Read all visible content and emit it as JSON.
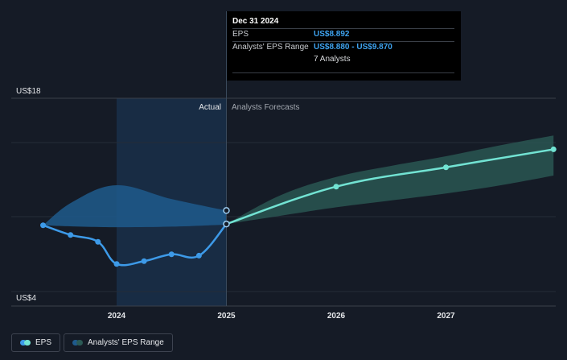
{
  "tooltip": {
    "date": "Dec 31 2024",
    "eps_label": "EPS",
    "eps_value": "US$8.892",
    "range_label": "Analysts' EPS Range",
    "range_value": "US$8.880 - US$9.870",
    "analysts": "7 Analysts"
  },
  "labels": {
    "actual": "Actual",
    "forecast": "Analysts Forecasts"
  },
  "legend": {
    "eps": "EPS",
    "range": "Analysts' EPS Range"
  },
  "colors": {
    "background": "#151b26",
    "eps_line": "#3d9ae8",
    "forecast_line": "#72e3d3",
    "actual_highlight": "#1c3a5c",
    "actual_range": "#1f5a8c",
    "forecast_range": "#2b5a55"
  },
  "chart_data": {
    "type": "line",
    "title": "",
    "xlabel": "",
    "ylabel": "",
    "ylim": [
      4,
      18
    ],
    "y_tick_labels": [
      "US$18",
      "US$4"
    ],
    "x_tick_labels": [
      "2024",
      "2025",
      "2026",
      "2027"
    ],
    "x_range": [
      2023.3,
      2027.98
    ],
    "series": [
      {
        "name": "EPS",
        "points": [
          [
            2023.33,
            8.8
          ],
          [
            2023.58,
            8.1
          ],
          [
            2023.83,
            7.6
          ],
          [
            2024.0,
            6.0
          ],
          [
            2024.25,
            6.2
          ],
          [
            2024.5,
            6.7
          ],
          [
            2024.75,
            6.6
          ],
          [
            2025.0,
            8.89
          ]
        ]
      },
      {
        "name": "EPS Forecast",
        "points": [
          [
            2025.0,
            8.89
          ],
          [
            2026.0,
            11.6
          ],
          [
            2027.0,
            13.0
          ],
          [
            2027.98,
            14.3
          ]
        ]
      }
    ],
    "range_band": {
      "name": "Analysts' EPS Range",
      "past": {
        "x": [
          2023.33,
          2023.6,
          2024.0,
          2024.5,
          2025.0
        ],
        "low": [
          8.8,
          8.72,
          8.66,
          8.7,
          8.85
        ],
        "high": [
          8.8,
          10.5,
          11.7,
          10.7,
          9.87
        ]
      },
      "future": {
        "x": [
          2025.0,
          2025.5,
          2026.0,
          2026.5,
          2027.0,
          2027.5,
          2027.98
        ],
        "low": [
          8.89,
          9.5,
          10.1,
          10.6,
          11.1,
          11.7,
          12.4
        ],
        "high": [
          8.89,
          11.0,
          12.3,
          13.1,
          13.8,
          14.6,
          15.3
        ]
      }
    },
    "tooltip_point": {
      "x": 2025.0,
      "eps": 8.892,
      "range_high": 9.87
    },
    "actual_region": [
      2024.0,
      2025.0
    ]
  }
}
